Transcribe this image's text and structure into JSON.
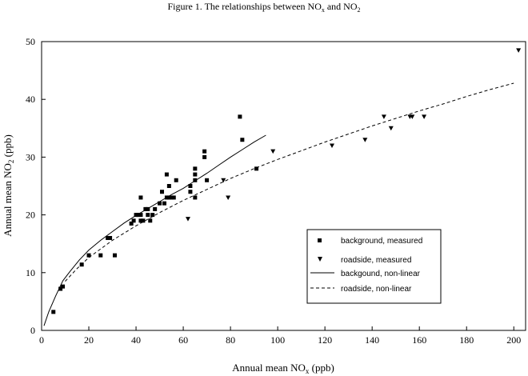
{
  "figure": {
    "title_main": "Figure 1. The relationships between NO",
    "title_sub1": "x",
    "title_and": " and NO",
    "title_sub2": "2"
  },
  "chart_data": {
    "type": "scatter",
    "xlabel_main": "Annual mean NO",
    "xlabel_sub": "x",
    "xlabel_unit": " (ppb)",
    "ylabel_main": "Annual mean NO",
    "ylabel_sub": "2",
    "ylabel_unit": " (ppb)",
    "xlim": [
      0,
      205
    ],
    "ylim": [
      0,
      50
    ],
    "xticks": [
      0,
      20,
      40,
      60,
      80,
      100,
      120,
      140,
      160,
      180,
      200
    ],
    "yticks": [
      0,
      10,
      20,
      30,
      40,
      50
    ],
    "grid": false,
    "legend_position": "lower-right",
    "series": [
      {
        "name": "background, measured",
        "kind": "points",
        "marker": "square",
        "points": [
          [
            5,
            3.2
          ],
          [
            8,
            7.2
          ],
          [
            9,
            7.6
          ],
          [
            17,
            11.4
          ],
          [
            20,
            13
          ],
          [
            25,
            13
          ],
          [
            28,
            16
          ],
          [
            29,
            16
          ],
          [
            31,
            13
          ],
          [
            38,
            18.5
          ],
          [
            39,
            19
          ],
          [
            40,
            20
          ],
          [
            41,
            20
          ],
          [
            42,
            19
          ],
          [
            42,
            20
          ],
          [
            42,
            23
          ],
          [
            43,
            19
          ],
          [
            44,
            21
          ],
          [
            45,
            20
          ],
          [
            45,
            21
          ],
          [
            46,
            19
          ],
          [
            47,
            20
          ],
          [
            48,
            21
          ],
          [
            50,
            22
          ],
          [
            51,
            24
          ],
          [
            52,
            22
          ],
          [
            53,
            23
          ],
          [
            53,
            27
          ],
          [
            54,
            23
          ],
          [
            54,
            25
          ],
          [
            55,
            23
          ],
          [
            56,
            23
          ],
          [
            57,
            26
          ],
          [
            63,
            24
          ],
          [
            63,
            25
          ],
          [
            65,
            23
          ],
          [
            65,
            27
          ],
          [
            65,
            26
          ],
          [
            65,
            28
          ],
          [
            69,
            30
          ],
          [
            69,
            31
          ],
          [
            70,
            26
          ],
          [
            84,
            37
          ],
          [
            85,
            33
          ],
          [
            91,
            28
          ]
        ]
      },
      {
        "name": "roadside, measured",
        "kind": "points",
        "marker": "triangle-down",
        "points": [
          [
            62,
            19.3
          ],
          [
            77,
            26
          ],
          [
            79,
            23
          ],
          [
            98,
            31
          ],
          [
            123,
            32
          ],
          [
            137,
            33
          ],
          [
            145,
            37
          ],
          [
            148,
            35
          ],
          [
            156,
            37
          ],
          [
            157,
            37
          ],
          [
            162,
            37
          ],
          [
            202,
            48.5
          ]
        ]
      },
      {
        "name": "backgound, non-linear",
        "kind": "curve",
        "dash": "solid",
        "points": [
          [
            1,
            0.8
          ],
          [
            3,
            3.2
          ],
          [
            6,
            6
          ],
          [
            9,
            8.6
          ],
          [
            12,
            10.2
          ],
          [
            16,
            12.2
          ],
          [
            20,
            13.9
          ],
          [
            25,
            15.6
          ],
          [
            30,
            17.1
          ],
          [
            35,
            18.6
          ],
          [
            40,
            19.9
          ],
          [
            45,
            21.1
          ],
          [
            50,
            22.3
          ],
          [
            55,
            23.5
          ],
          [
            60,
            24.6
          ],
          [
            65,
            25.9
          ],
          [
            70,
            27.2
          ],
          [
            75,
            28.6
          ],
          [
            80,
            30.0
          ],
          [
            85,
            31.3
          ],
          [
            90,
            32.6
          ],
          [
            95,
            33.8
          ]
        ]
      },
      {
        "name": "roadside, non-linear",
        "kind": "curve",
        "dash": "dashed",
        "points": [
          [
            10,
            8.5
          ],
          [
            15,
            10.7
          ],
          [
            20,
            12.6
          ],
          [
            30,
            15.6
          ],
          [
            40,
            18.1
          ],
          [
            50,
            20.4
          ],
          [
            60,
            22.5
          ],
          [
            70,
            24.4
          ],
          [
            80,
            26.3
          ],
          [
            90,
            28.0
          ],
          [
            100,
            29.6
          ],
          [
            110,
            31.1
          ],
          [
            120,
            32.6
          ],
          [
            130,
            34.0
          ],
          [
            140,
            35.4
          ],
          [
            150,
            36.7
          ],
          [
            160,
            38.0
          ],
          [
            170,
            39.2
          ],
          [
            180,
            40.5
          ],
          [
            190,
            41.7
          ],
          [
            200,
            42.8
          ]
        ]
      }
    ]
  }
}
